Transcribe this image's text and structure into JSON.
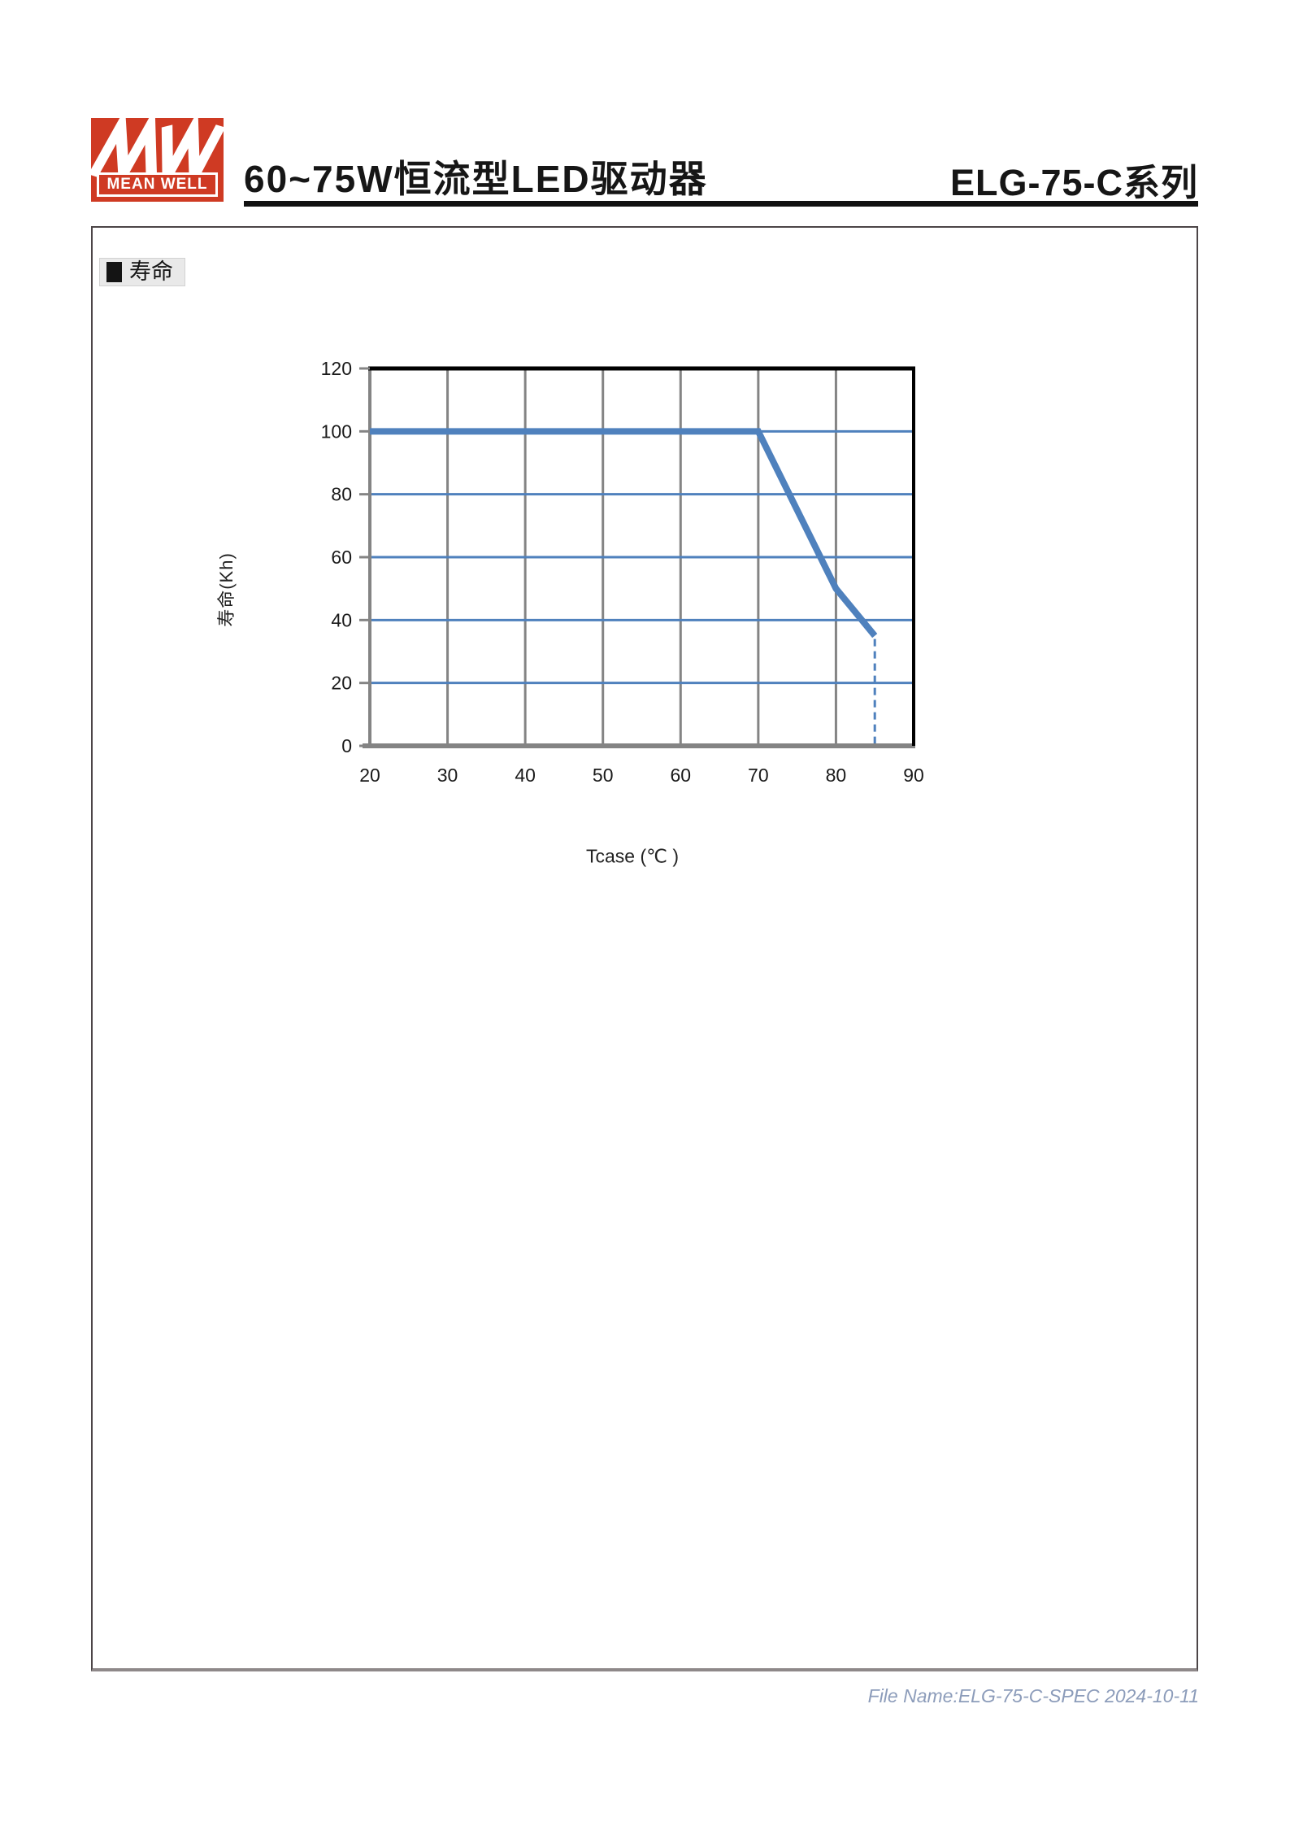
{
  "header": {
    "logo": {
      "mw": "MW",
      "brand": "MEAN WELL"
    },
    "title": "60~75W恒流型LED驱动器",
    "series_title": "ELG-75-C系列"
  },
  "section": {
    "label": "寿命"
  },
  "chart_data": {
    "type": "line",
    "title": "",
    "xlabel": "Tcase (℃ )",
    "ylabel": "寿命(Kh)",
    "xlim": [
      20,
      90
    ],
    "ylim": [
      0,
      120
    ],
    "x_ticks": [
      20,
      30,
      40,
      50,
      60,
      70,
      80,
      90
    ],
    "y_ticks": [
      0,
      20,
      40,
      60,
      80,
      100,
      120
    ],
    "series": [
      {
        "name": "寿命",
        "points": [
          [
            20,
            100
          ],
          [
            70,
            100
          ],
          [
            80,
            50
          ],
          [
            85,
            35
          ]
        ]
      }
    ],
    "dashed_drop": {
      "x": 85,
      "y_from": 35,
      "y_to": 0
    },
    "grid": true,
    "legend": false,
    "colors": {
      "line": "#4f81bd",
      "h_grid": "#4f81bd",
      "v_grid": "#848484",
      "axis_gray": "#848484",
      "border_dark": "#000000",
      "tick_label": "#1a1a1a"
    }
  },
  "footer": {
    "text": "File Name:ELG-75-C-SPEC  2024-10-11"
  },
  "colors": {
    "brand_red": "#cf3a23",
    "label_bg": "#e9e9e9",
    "footer_blue": "#8c9cba"
  }
}
